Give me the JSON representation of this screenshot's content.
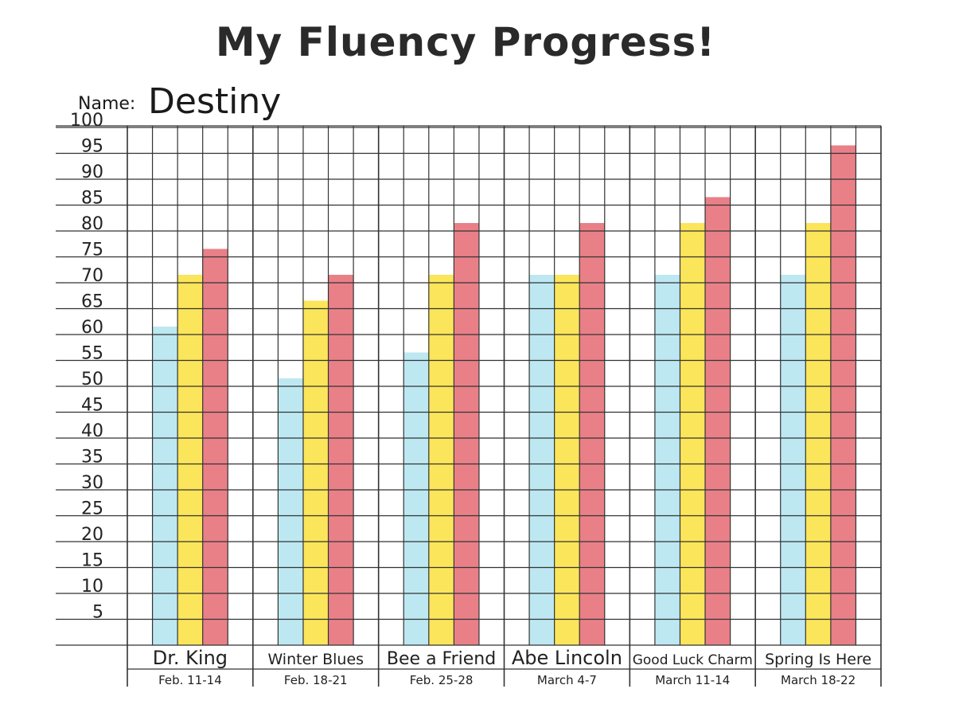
{
  "title": "My Fluency Progress!",
  "name_label": "Name:",
  "name_value": "Destiny",
  "chart_data": {
    "type": "bar",
    "ylim": [
      0,
      100
    ],
    "yticks": [
      5,
      10,
      15,
      20,
      25,
      30,
      35,
      40,
      45,
      50,
      55,
      60,
      65,
      70,
      75,
      80,
      85,
      90,
      95,
      100
    ],
    "grid": true,
    "categories": [
      "Dr. King",
      "Winter Blues",
      "Bee a Friend",
      "Abe Lincoln",
      "Good Luck Charm",
      "Spring Is Here"
    ],
    "dates": [
      "Feb. 11-14",
      "Feb. 18-21",
      "Feb. 25-28",
      "March 4-7",
      "March 11-14",
      "March 18-22"
    ],
    "series": [
      {
        "color": "#bde8f2",
        "values": [
          60,
          50,
          55,
          70,
          70,
          70
        ]
      },
      {
        "color": "#fbe55a",
        "values": [
          70,
          65,
          70,
          70,
          80,
          80
        ]
      },
      {
        "color": "#e98088",
        "values": [
          75,
          70,
          80,
          80,
          85,
          95
        ]
      }
    ]
  }
}
